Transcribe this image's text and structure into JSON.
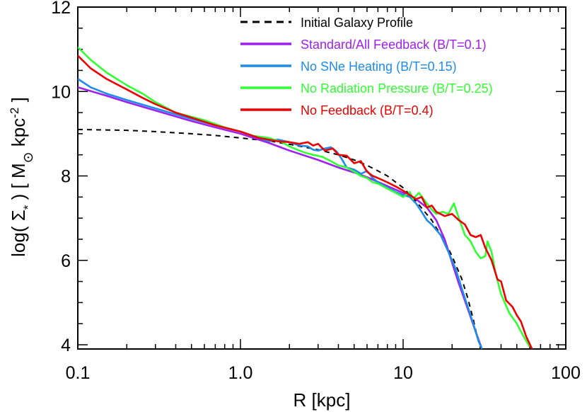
{
  "chart_data": {
    "type": "line",
    "xlabel": "R  [kpc]",
    "ylabel": {
      "prefix": "log( Σ",
      "sub": "*",
      "mid": " )  [ M",
      "sun": "⊙",
      "unit": "kpc",
      "sup": "-2",
      "suffix": " ]"
    },
    "xscale": "log",
    "xlim": [
      0.1,
      100
    ],
    "ylim": [
      3.9,
      12
    ],
    "xticks": [
      0.1,
      1.0,
      10,
      100
    ],
    "xtick_labels": [
      "0.1",
      "1.0",
      "10",
      "100"
    ],
    "yticks": [
      4,
      6,
      8,
      10,
      12
    ],
    "ytick_labels": [
      "4",
      "6",
      "8",
      "10",
      "12"
    ],
    "legend_position": "top-right",
    "grid": false,
    "series": [
      {
        "name": "Initial Galaxy Profile",
        "color": "#000000",
        "dashed": true,
        "points": [
          [
            0.1,
            9.1
          ],
          [
            0.2,
            9.08
          ],
          [
            0.3,
            9.05
          ],
          [
            0.5,
            9.0
          ],
          [
            0.7,
            8.96
          ],
          [
            1.0,
            8.9
          ],
          [
            1.5,
            8.83
          ],
          [
            2.0,
            8.75
          ],
          [
            3.0,
            8.62
          ],
          [
            4.0,
            8.5
          ],
          [
            5.0,
            8.38
          ],
          [
            6.0,
            8.25
          ],
          [
            7.0,
            8.12
          ],
          [
            8.0,
            8.0
          ],
          [
            10.0,
            7.72
          ],
          [
            12.0,
            7.4
          ],
          [
            15.0,
            6.95
          ],
          [
            18.0,
            6.45
          ],
          [
            20.0,
            6.1
          ],
          [
            23.0,
            5.55
          ],
          [
            25.0,
            5.1
          ],
          [
            27.0,
            4.6
          ],
          [
            28.5,
            4.2
          ],
          [
            30.0,
            3.9
          ]
        ]
      },
      {
        "name": "Standard/All Feedback (B/T=0.1)",
        "color": "#a020f0",
        "dashed": false,
        "points": [
          [
            0.1,
            10.1
          ],
          [
            0.15,
            9.9
          ],
          [
            0.2,
            9.75
          ],
          [
            0.3,
            9.55
          ],
          [
            0.5,
            9.3
          ],
          [
            0.7,
            9.15
          ],
          [
            1.0,
            9.0
          ],
          [
            1.5,
            8.78
          ],
          [
            2.0,
            8.6
          ],
          [
            3.0,
            8.38
          ],
          [
            4.0,
            8.2
          ],
          [
            5.0,
            8.08
          ],
          [
            6.0,
            7.97
          ],
          [
            7.0,
            7.86
          ],
          [
            8.0,
            7.76
          ],
          [
            10.0,
            7.6
          ],
          [
            12.0,
            7.45
          ],
          [
            14.0,
            7.25
          ],
          [
            16.0,
            6.95
          ],
          [
            18.0,
            6.5
          ],
          [
            20.0,
            5.95
          ],
          [
            22.0,
            5.45
          ],
          [
            25.0,
            4.85
          ],
          [
            28.0,
            4.3
          ],
          [
            30.5,
            3.9
          ]
        ]
      },
      {
        "name": "No SNe Heating (B/T=0.15)",
        "color": "#1e8ce8",
        "dashed": false,
        "points": [
          [
            0.1,
            10.3
          ],
          [
            0.12,
            10.1
          ],
          [
            0.15,
            9.95
          ],
          [
            0.2,
            9.8
          ],
          [
            0.3,
            9.6
          ],
          [
            0.5,
            9.35
          ],
          [
            0.7,
            9.2
          ],
          [
            1.0,
            9.05
          ],
          [
            1.3,
            8.9
          ],
          [
            1.5,
            8.82
          ],
          [
            1.7,
            8.86
          ],
          [
            2.0,
            8.8
          ],
          [
            2.3,
            8.72
          ],
          [
            2.6,
            8.7
          ],
          [
            2.8,
            8.62
          ],
          [
            3.0,
            8.6
          ],
          [
            3.3,
            8.65
          ],
          [
            3.6,
            8.68
          ],
          [
            3.9,
            8.58
          ],
          [
            4.2,
            8.4
          ],
          [
            4.5,
            8.2
          ],
          [
            5.0,
            8.15
          ],
          [
            5.5,
            8.05
          ],
          [
            6.0,
            8.12
          ],
          [
            6.5,
            7.95
          ],
          [
            7.0,
            7.85
          ],
          [
            8.0,
            7.72
          ],
          [
            9.0,
            7.62
          ],
          [
            10.0,
            7.55
          ],
          [
            11.0,
            7.5
          ],
          [
            12.0,
            7.35
          ],
          [
            13.0,
            7.15
          ],
          [
            14.0,
            6.95
          ],
          [
            15.0,
            6.85
          ],
          [
            17.0,
            6.6
          ],
          [
            19.0,
            6.2
          ],
          [
            21.0,
            5.8
          ],
          [
            24.0,
            5.1
          ],
          [
            27.0,
            4.5
          ],
          [
            29.0,
            4.1
          ],
          [
            30.5,
            3.9
          ]
        ]
      },
      {
        "name": "No Radiation Pressure (B/T=0.25)",
        "color": "#32ff32",
        "dashed": false,
        "points": [
          [
            0.1,
            11.05
          ],
          [
            0.12,
            10.75
          ],
          [
            0.15,
            10.45
          ],
          [
            0.2,
            10.15
          ],
          [
            0.25,
            9.95
          ],
          [
            0.3,
            9.75
          ],
          [
            0.4,
            9.5
          ],
          [
            0.5,
            9.4
          ],
          [
            0.6,
            9.32
          ],
          [
            0.8,
            9.15
          ],
          [
            1.0,
            9.05
          ],
          [
            1.2,
            8.95
          ],
          [
            1.5,
            8.9
          ],
          [
            1.8,
            8.8
          ],
          [
            2.0,
            8.7
          ],
          [
            2.3,
            8.6
          ],
          [
            2.5,
            8.55
          ],
          [
            2.8,
            8.5
          ],
          [
            3.2,
            8.45
          ],
          [
            3.6,
            8.35
          ],
          [
            4.0,
            8.25
          ],
          [
            4.5,
            8.2
          ],
          [
            5.0,
            8.1
          ],
          [
            5.5,
            8.0
          ],
          [
            6.0,
            7.95
          ],
          [
            6.5,
            7.85
          ],
          [
            7.0,
            7.82
          ],
          [
            8.0,
            7.7
          ],
          [
            9.0,
            7.6
          ],
          [
            10.0,
            7.5
          ],
          [
            11.0,
            7.62
          ],
          [
            11.5,
            7.45
          ],
          [
            12.5,
            7.6
          ],
          [
            14.0,
            7.35
          ],
          [
            15.0,
            7.2
          ],
          [
            16.0,
            7.1
          ],
          [
            17.5,
            7.15
          ],
          [
            19.0,
            7.1
          ],
          [
            20.5,
            7.35
          ],
          [
            22.0,
            7.0
          ],
          [
            24.0,
            6.6
          ],
          [
            26.0,
            6.45
          ],
          [
            28.0,
            6.2
          ],
          [
            30.0,
            6.05
          ],
          [
            32.0,
            6.1
          ],
          [
            33.0,
            6.45
          ],
          [
            35.0,
            6.2
          ],
          [
            37.0,
            5.7
          ],
          [
            40.0,
            5.2
          ],
          [
            45.0,
            4.75
          ],
          [
            50.0,
            4.5
          ],
          [
            55.0,
            4.2
          ],
          [
            60.0,
            3.95
          ]
        ]
      },
      {
        "name": "No Feedback (B/T=0.4)",
        "color": "#ee0000",
        "dashed": false,
        "points": [
          [
            0.1,
            10.85
          ],
          [
            0.12,
            10.55
          ],
          [
            0.15,
            10.3
          ],
          [
            0.2,
            10.05
          ],
          [
            0.25,
            9.85
          ],
          [
            0.3,
            9.7
          ],
          [
            0.4,
            9.5
          ],
          [
            0.5,
            9.38
          ],
          [
            0.7,
            9.2
          ],
          [
            1.0,
            9.05
          ],
          [
            1.3,
            8.9
          ],
          [
            1.7,
            8.82
          ],
          [
            2.0,
            8.8
          ],
          [
            2.3,
            8.76
          ],
          [
            2.6,
            8.8
          ],
          [
            2.8,
            8.72
          ],
          [
            3.0,
            8.76
          ],
          [
            3.3,
            8.6
          ],
          [
            3.7,
            8.65
          ],
          [
            4.0,
            8.5
          ],
          [
            4.5,
            8.48
          ],
          [
            5.0,
            8.3
          ],
          [
            5.5,
            8.35
          ],
          [
            6.0,
            8.1
          ],
          [
            6.5,
            8.0
          ],
          [
            7.0,
            7.95
          ],
          [
            8.0,
            7.85
          ],
          [
            9.0,
            7.75
          ],
          [
            10.0,
            7.65
          ],
          [
            11.0,
            7.55
          ],
          [
            12.0,
            7.45
          ],
          [
            13.0,
            7.5
          ],
          [
            14.0,
            7.25
          ],
          [
            15.0,
            7.3
          ],
          [
            16.0,
            7.15
          ],
          [
            18.0,
            7.05
          ],
          [
            20.0,
            7.1
          ],
          [
            22.0,
            6.95
          ],
          [
            24.0,
            6.85
          ],
          [
            26.0,
            6.6
          ],
          [
            28.0,
            6.55
          ],
          [
            30.0,
            6.6
          ],
          [
            32.0,
            6.3
          ],
          [
            35.0,
            6.0
          ],
          [
            38.0,
            5.55
          ],
          [
            40.0,
            5.5
          ],
          [
            43.0,
            5.05
          ],
          [
            47.0,
            4.9
          ],
          [
            50.0,
            4.7
          ],
          [
            53.0,
            4.55
          ],
          [
            57.0,
            4.2
          ],
          [
            62.0,
            3.9
          ]
        ]
      }
    ]
  }
}
